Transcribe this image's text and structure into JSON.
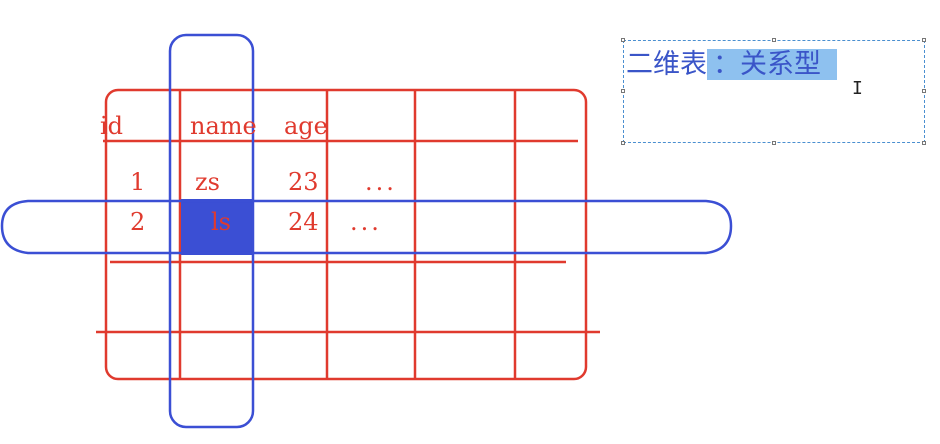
{
  "table": {
    "headers": [
      "id",
      "name",
      "age"
    ],
    "rows": [
      [
        "1",
        "zs",
        "23",
        "..."
      ],
      [
        "2",
        "ls",
        "24",
        "..."
      ]
    ],
    "highlighted_cell": "ls"
  },
  "textbox": {
    "prefix": "二维表",
    "selected": "：关系型"
  },
  "colors": {
    "grid": "#e03a2e",
    "outline": "#3b4fd4",
    "highlight": "#3b4fd4",
    "selection": "#8ec1ef",
    "textbox_text": "#3a55c8"
  }
}
